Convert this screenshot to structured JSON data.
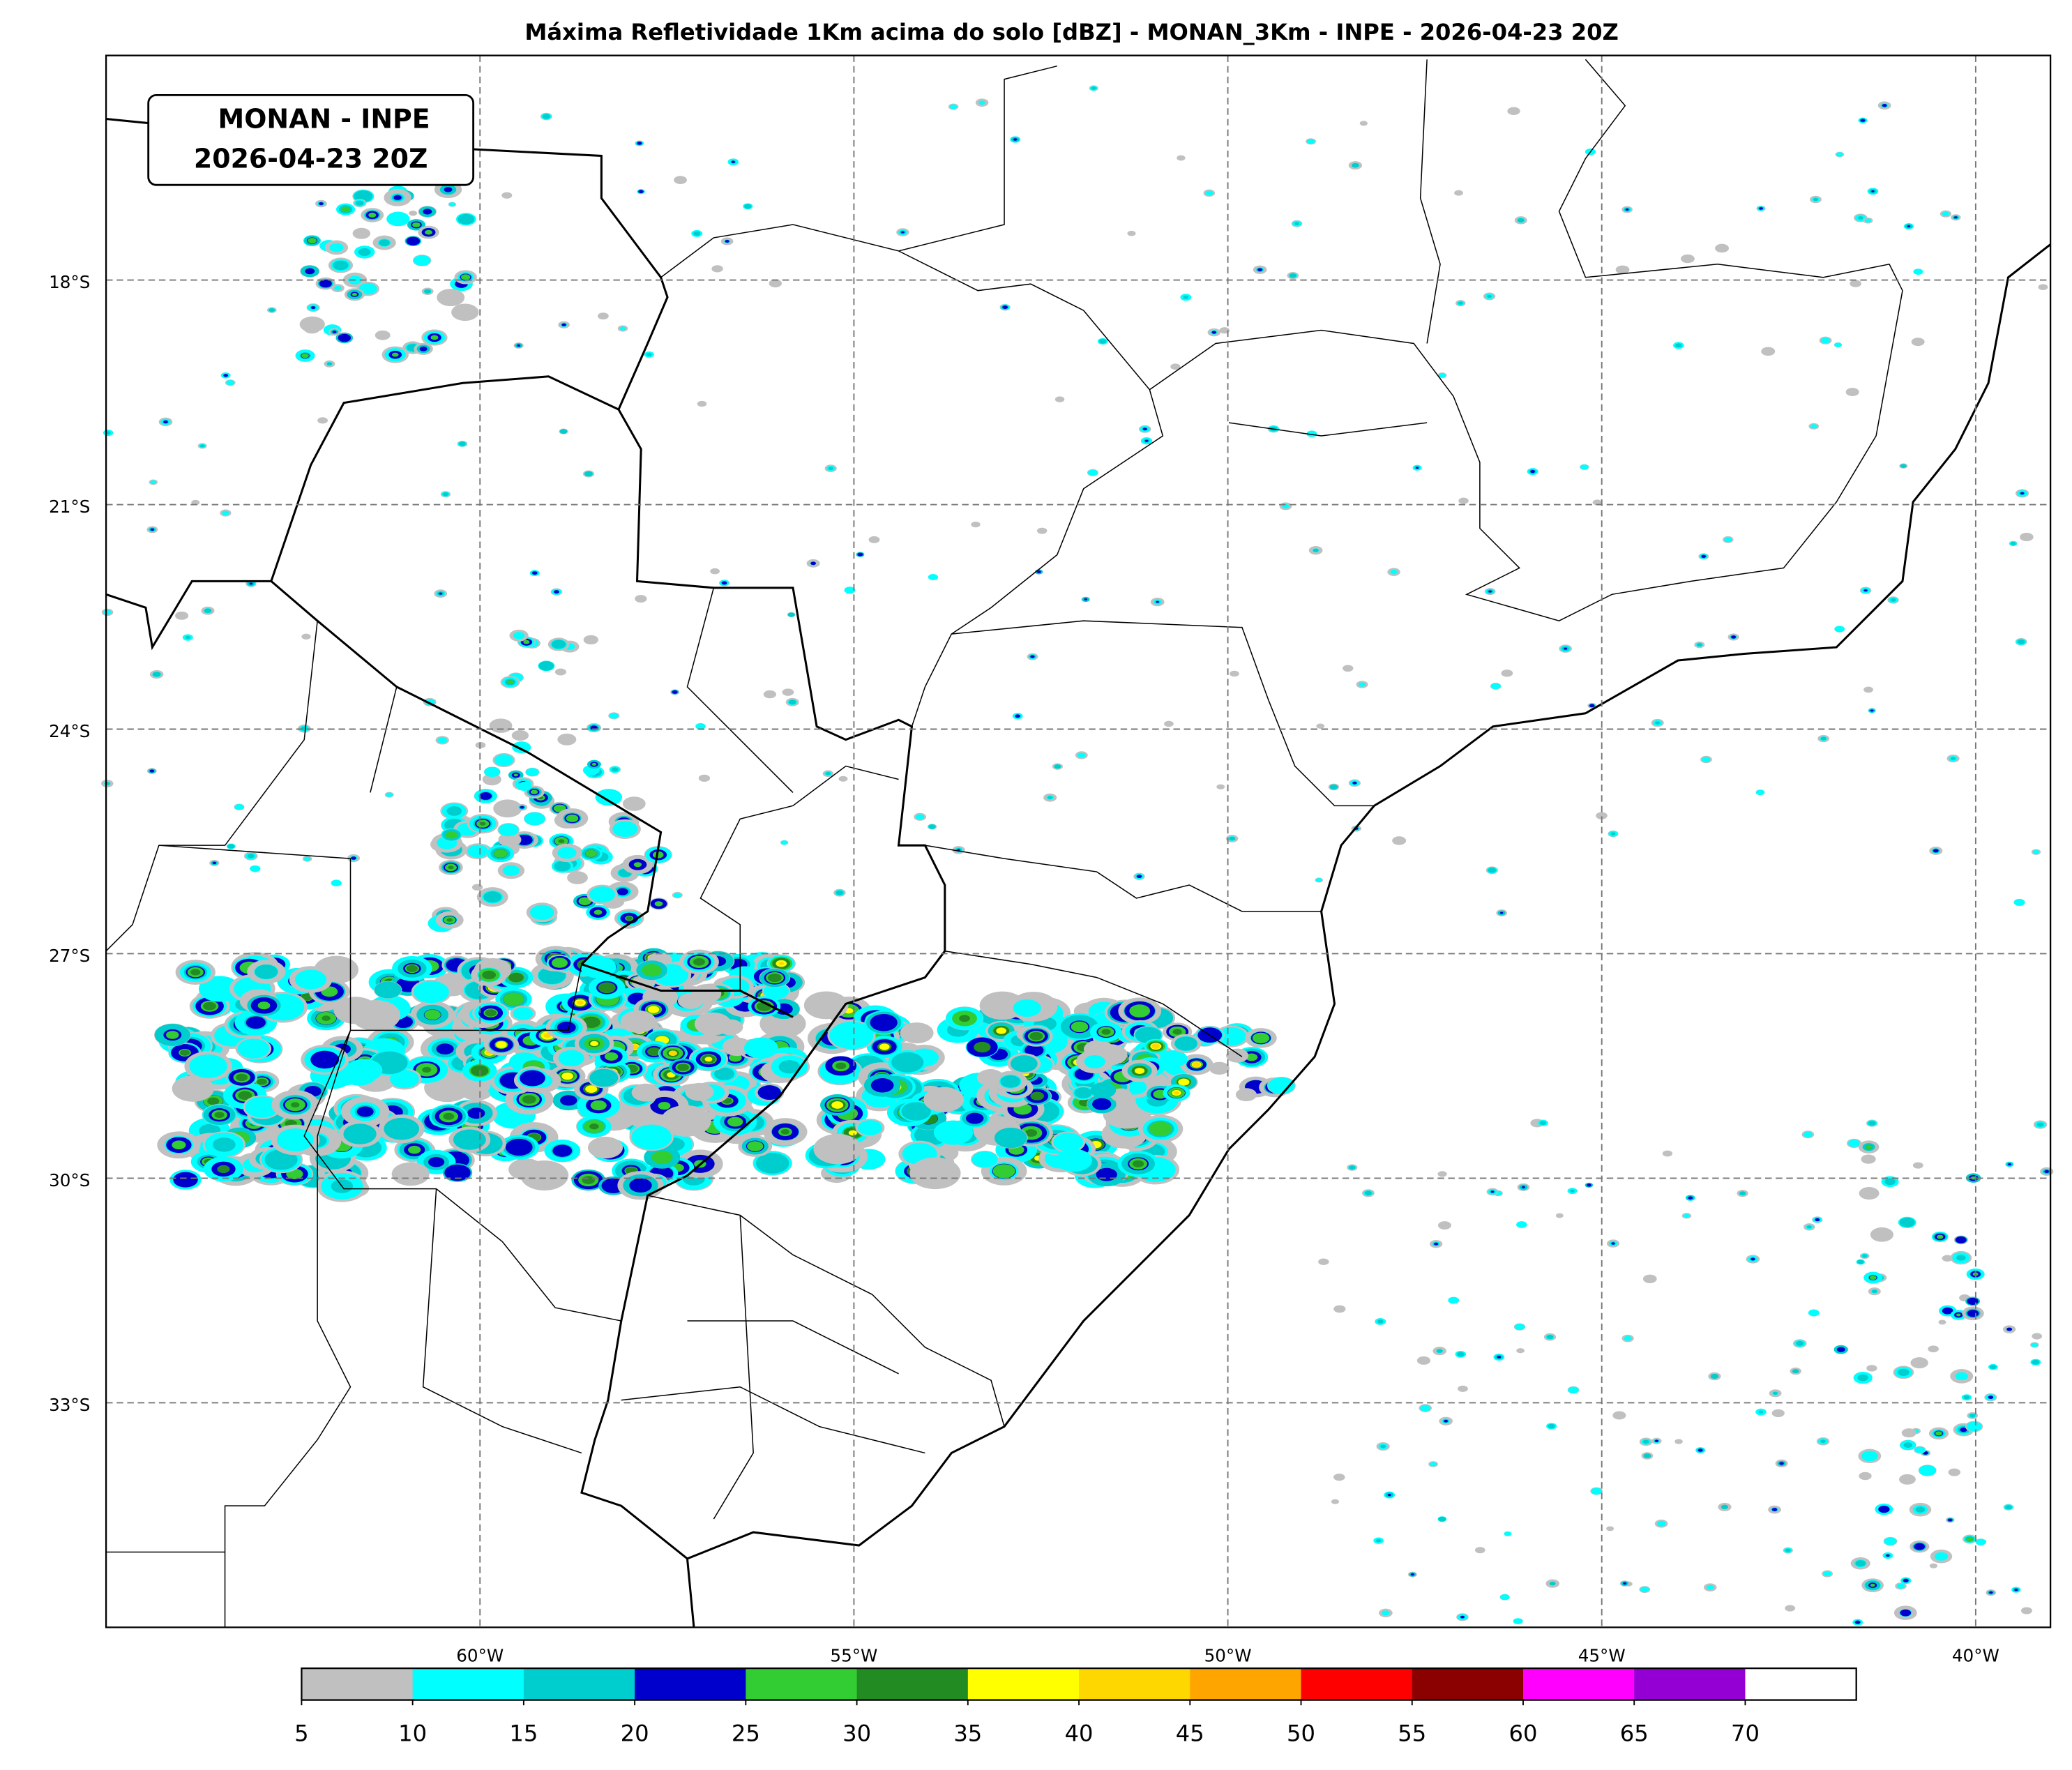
{
  "chart_data": {
    "type": "map",
    "title": "Máxima Refletividade 1Km acima do solo [dBZ] - MONAN_3Km - INPE - 2026-04-23 20Z",
    "annotation": [
      "MONAN - INPE",
      "2026-04-23 20Z"
    ],
    "xlim": [
      -65,
      -39
    ],
    "ylim": [
      -36,
      -15
    ],
    "xticks": [
      {
        "value": -60,
        "label": "60°W"
      },
      {
        "value": -55,
        "label": "55°W"
      },
      {
        "value": -50,
        "label": "50°W"
      },
      {
        "value": -45,
        "label": "45°W"
      },
      {
        "value": -40,
        "label": "40°W"
      }
    ],
    "yticks": [
      {
        "value": -18,
        "label": "18°S"
      },
      {
        "value": -21,
        "label": "21°S"
      },
      {
        "value": -24,
        "label": "24°S"
      },
      {
        "value": -27,
        "label": "27°S"
      },
      {
        "value": -30,
        "label": "30°S"
      },
      {
        "value": -33,
        "label": "33°S"
      }
    ],
    "grid": true,
    "colorbar": {
      "lim": [
        5,
        75
      ],
      "ticks": [
        5,
        10,
        15,
        20,
        25,
        30,
        35,
        40,
        45,
        50,
        55,
        60,
        65,
        70
      ],
      "colors": [
        "#c0c0c0",
        "#00ffff",
        "#00cdcd",
        "#0000cd",
        "#32cd32",
        "#228b22",
        "#ffff00",
        "#ffd700",
        "#ffa500",
        "#ff0000",
        "#8b0000",
        "#ff00ff",
        "#9400d3",
        "#ffffff"
      ]
    }
  }
}
